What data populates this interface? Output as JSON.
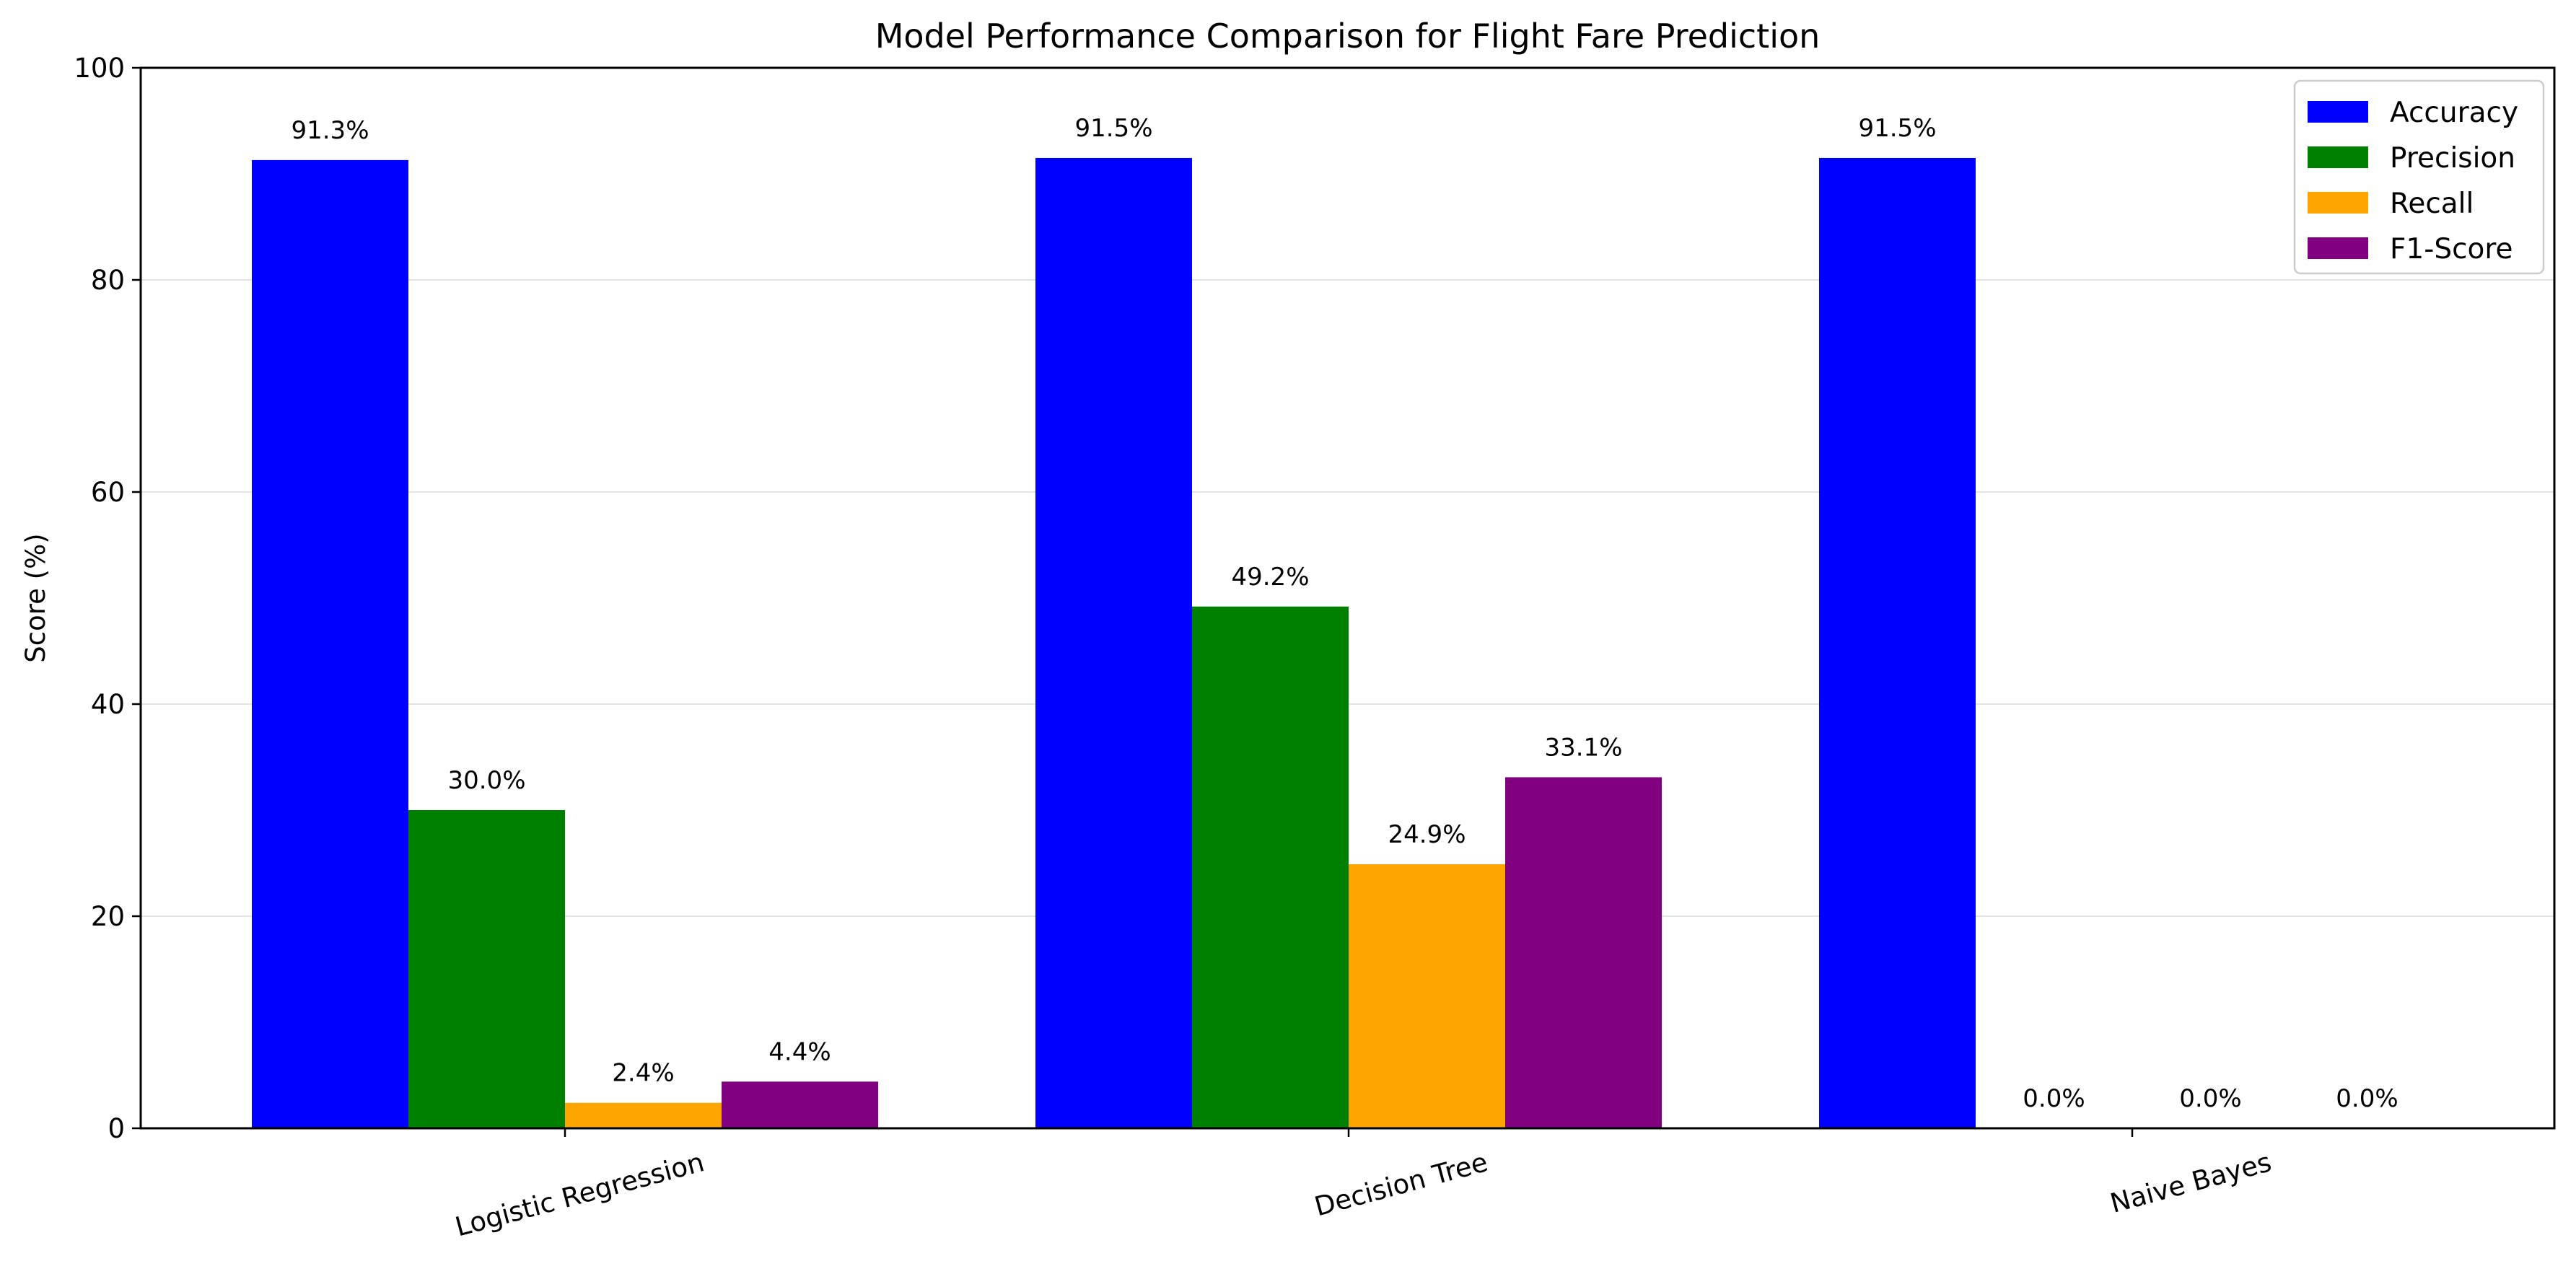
{
  "chart_data": {
    "type": "bar",
    "title": "Model Performance Comparison for Flight Fare Prediction",
    "xlabel": "",
    "ylabel": "Score (%)",
    "ylim": [
      0,
      100
    ],
    "yticks": [
      0,
      20,
      40,
      60,
      80,
      100
    ],
    "grid": "y-major",
    "legend_position": "top-right",
    "categories": [
      "Logistic Regression",
      "Decision Tree",
      "Naive Bayes"
    ],
    "series": [
      {
        "name": "Accuracy",
        "color": "#0000ff",
        "values": [
          91.3,
          91.5,
          91.5
        ],
        "labels": [
          "91.3%",
          "91.5%",
          "91.5%"
        ]
      },
      {
        "name": "Precision",
        "color": "#008000",
        "values": [
          30.0,
          49.2,
          0.0
        ],
        "labels": [
          "30.0%",
          "49.2%",
          "0.0%"
        ]
      },
      {
        "name": "Recall",
        "color": "#ffa500",
        "values": [
          2.4,
          24.9,
          0.0
        ],
        "labels": [
          "2.4%",
          "24.9%",
          "0.0%"
        ]
      },
      {
        "name": "F1-Score",
        "color": "#800080",
        "values": [
          4.4,
          33.1,
          0.0
        ],
        "labels": [
          "4.4%",
          "33.1%",
          "0.0%"
        ]
      }
    ]
  }
}
